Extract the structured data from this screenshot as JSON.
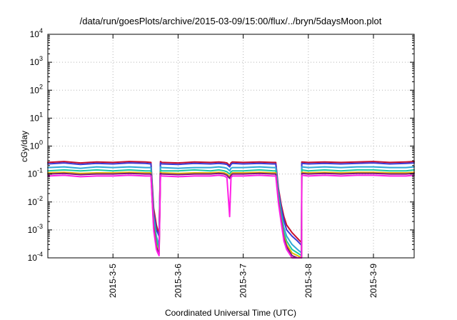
{
  "chart_data": {
    "type": "line",
    "title": "/data/run/goesPlots/archive/2015-03-09/15:00/flux/../bryn/5daysMoon.plot",
    "xlabel": "Coordinated Universal Time (UTC)",
    "ylabel": "cGy/day",
    "x_scale": "time",
    "y_scale": "log",
    "xlim": [
      "2015-03-04 00:00",
      "2015-03-09 15:00"
    ],
    "ylim": [
      0.0001,
      10000
    ],
    "grid": true,
    "x_ticks": [
      {
        "at": "2015-03-05 00:00",
        "label": "2015-3-5"
      },
      {
        "at": "2015-03-06 00:00",
        "label": "2015-3-6"
      },
      {
        "at": "2015-03-07 00:00",
        "label": "2015-3-7"
      },
      {
        "at": "2015-03-08 00:00",
        "label": "2015-3-8"
      },
      {
        "at": "2015-03-09 00:00",
        "label": "2015-3-9"
      }
    ],
    "y_ticks": [
      {
        "value": 0.0001,
        "base": "10",
        "exp": "-4"
      },
      {
        "value": 0.001,
        "base": "10",
        "exp": "-3"
      },
      {
        "value": 0.01,
        "base": "10",
        "exp": "-2"
      },
      {
        "value": 0.1,
        "base": "10",
        "exp": "-1"
      },
      {
        "value": 1,
        "base": "10",
        "exp": "0"
      },
      {
        "value": 10,
        "base": "10",
        "exp": "1"
      },
      {
        "value": 100,
        "base": "10",
        "exp": "2"
      },
      {
        "value": 1000,
        "base": "10",
        "exp": "3"
      },
      {
        "value": 10000,
        "base": "10",
        "exp": "4"
      }
    ],
    "x": [
      "2015-03-04 00:00",
      "2015-03-04 06:00",
      "2015-03-04 12:00",
      "2015-03-04 18:00",
      "2015-03-05 00:00",
      "2015-03-05 06:00",
      "2015-03-05 12:00",
      "2015-03-05 14:00",
      "2015-03-05 14:30",
      "2015-03-05 15:00",
      "2015-03-05 16:00",
      "2015-03-05 16:30",
      "2015-03-05 17:00",
      "2015-03-05 17:30",
      "2015-03-05 18:00",
      "2015-03-06 00:00",
      "2015-03-06 06:00",
      "2015-03-06 12:00",
      "2015-03-06 15:00",
      "2015-03-06 17:00",
      "2015-03-06 18:00",
      "2015-03-06 19:00",
      "2015-03-06 19:30",
      "2015-03-06 20:00",
      "2015-03-07 00:00",
      "2015-03-07 06:00",
      "2015-03-07 11:00",
      "2015-03-07 12:00",
      "2015-03-07 13:00",
      "2015-03-07 14:00",
      "2015-03-07 15:00",
      "2015-03-07 16:00",
      "2015-03-07 18:00",
      "2015-03-07 20:00",
      "2015-03-07 21:30",
      "2015-03-07 21:35",
      "2015-03-08 00:00",
      "2015-03-08 06:00",
      "2015-03-08 12:00",
      "2015-03-08 18:00",
      "2015-03-09 00:00",
      "2015-03-09 06:00",
      "2015-03-09 12:00",
      "2015-03-09 15:00"
    ],
    "series": [
      {
        "color": "#c8102e",
        "values": [
          0.26,
          0.28,
          0.25,
          0.27,
          0.26,
          0.28,
          0.27,
          0.26,
          0.04,
          0.006,
          0.0015,
          0.001,
          0.0008,
          0.28,
          0.26,
          0.25,
          0.27,
          0.26,
          0.27,
          0.26,
          0.25,
          0.2,
          0.25,
          0.27,
          0.26,
          0.27,
          0.26,
          0.26,
          0.03,
          0.008,
          0.003,
          0.0015,
          0.0008,
          0.0005,
          0.00035,
          0.27,
          0.26,
          0.27,
          0.26,
          0.27,
          0.28,
          0.26,
          0.27,
          0.28
        ]
      },
      {
        "color": "#3b3bd6",
        "values": [
          0.23,
          0.25,
          0.22,
          0.24,
          0.23,
          0.25,
          0.24,
          0.23,
          0.03,
          0.004,
          0.001,
          0.0008,
          0.0006,
          0.25,
          0.23,
          0.22,
          0.24,
          0.23,
          0.24,
          0.23,
          0.22,
          0.18,
          0.22,
          0.24,
          0.23,
          0.24,
          0.23,
          0.23,
          0.025,
          0.006,
          0.0022,
          0.001,
          0.0006,
          0.0004,
          0.00028,
          0.24,
          0.23,
          0.24,
          0.23,
          0.24,
          0.25,
          0.23,
          0.24,
          0.25
        ]
      },
      {
        "color": "#2fa8d8",
        "values": [
          0.17,
          0.18,
          0.16,
          0.18,
          0.17,
          0.18,
          0.17,
          0.17,
          0.02,
          0.003,
          0.0006,
          0.0004,
          0.0003,
          0.18,
          0.17,
          0.16,
          0.17,
          0.17,
          0.18,
          0.17,
          0.16,
          0.13,
          0.16,
          0.17,
          0.17,
          0.18,
          0.17,
          0.17,
          0.02,
          0.004,
          0.0012,
          0.0006,
          0.0003,
          0.0002,
          0.00015,
          0.18,
          0.17,
          0.18,
          0.17,
          0.18,
          0.18,
          0.17,
          0.17,
          0.18
        ]
      },
      {
        "color": "#19c9a0",
        "values": [
          0.13,
          0.14,
          0.13,
          0.14,
          0.13,
          0.14,
          0.13,
          0.13,
          0.015,
          0.002,
          0.0004,
          0.0003,
          0.0002,
          0.14,
          0.13,
          0.13,
          0.14,
          0.13,
          0.14,
          0.13,
          0.12,
          0.1,
          0.12,
          0.13,
          0.13,
          0.14,
          0.13,
          0.13,
          0.015,
          0.003,
          0.0008,
          0.0004,
          0.0002,
          0.00015,
          0.00012,
          0.14,
          0.13,
          0.14,
          0.13,
          0.14,
          0.14,
          0.13,
          0.13,
          0.14
        ]
      },
      {
        "color": "#e0b800",
        "values": [
          0.11,
          0.115,
          0.105,
          0.11,
          0.11,
          0.115,
          0.11,
          0.11,
          0.012,
          0.0015,
          0.0003,
          0.0002,
          0.00015,
          0.115,
          0.11,
          0.105,
          0.11,
          0.11,
          0.115,
          0.11,
          0.1,
          0.08,
          0.1,
          0.11,
          0.11,
          0.115,
          0.11,
          0.11,
          0.012,
          0.0025,
          0.0006,
          0.0003,
          0.00015,
          0.00012,
          0.0001,
          0.115,
          0.11,
          0.115,
          0.11,
          0.115,
          0.115,
          0.11,
          0.11,
          0.115
        ]
      },
      {
        "color": "#7a1a7a",
        "values": [
          0.1,
          0.105,
          0.095,
          0.1,
          0.1,
          0.105,
          0.1,
          0.1,
          0.011,
          0.0013,
          0.00025,
          0.00018,
          0.00014,
          0.105,
          0.1,
          0.095,
          0.1,
          0.1,
          0.105,
          0.1,
          0.09,
          0.07,
          0.09,
          0.1,
          0.1,
          0.105,
          0.1,
          0.1,
          0.011,
          0.0022,
          0.0005,
          0.00025,
          0.00012,
          0.0001,
          0.0001,
          0.105,
          0.1,
          0.105,
          0.1,
          0.105,
          0.105,
          0.1,
          0.1,
          0.105
        ]
      },
      {
        "color": "#ff1fe6",
        "values": [
          0.085,
          0.09,
          0.08,
          0.085,
          0.085,
          0.09,
          0.085,
          0.085,
          0.009,
          0.001,
          0.0002,
          0.00015,
          0.00012,
          0.09,
          0.085,
          0.08,
          0.085,
          0.085,
          0.09,
          0.085,
          0.075,
          0.003,
          0.075,
          0.085,
          0.085,
          0.09,
          0.085,
          0.085,
          0.009,
          0.0018,
          0.0004,
          0.0002,
          0.0001,
          0.0001,
          0.0001,
          0.09,
          0.085,
          0.09,
          0.085,
          0.09,
          0.09,
          0.085,
          0.085,
          0.09
        ]
      }
    ]
  }
}
